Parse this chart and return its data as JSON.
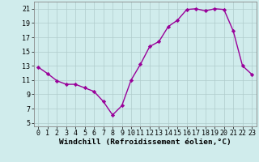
{
  "x": [
    0,
    1,
    2,
    3,
    4,
    5,
    6,
    7,
    8,
    9,
    10,
    11,
    12,
    13,
    14,
    15,
    16,
    17,
    18,
    19,
    20,
    21,
    22,
    23
  ],
  "y": [
    12.8,
    11.9,
    10.9,
    10.4,
    10.4,
    9.9,
    9.4,
    8.0,
    6.1,
    7.4,
    11.0,
    13.2,
    15.7,
    16.4,
    18.5,
    19.4,
    20.9,
    21.0,
    20.7,
    21.0,
    20.9,
    17.9,
    13.0,
    11.8
  ],
  "line_color": "#990099",
  "marker": "D",
  "marker_size": 2.2,
  "line_width": 1.0,
  "xlabel": "Windchill (Refroidissement éolien,°C)",
  "xlim": [
    -0.5,
    23.5
  ],
  "ylim": [
    4.5,
    22.0
  ],
  "yticks": [
    5,
    7,
    9,
    11,
    13,
    15,
    17,
    19,
    21
  ],
  "xticks": [
    0,
    1,
    2,
    3,
    4,
    5,
    6,
    7,
    8,
    9,
    10,
    11,
    12,
    13,
    14,
    15,
    16,
    17,
    18,
    19,
    20,
    21,
    22,
    23
  ],
  "bg_color": "#d0ecec",
  "grid_color": "#b0cccc",
  "font_family": "monospace",
  "xlabel_fontsize": 6.8,
  "tick_fontsize": 6.0
}
